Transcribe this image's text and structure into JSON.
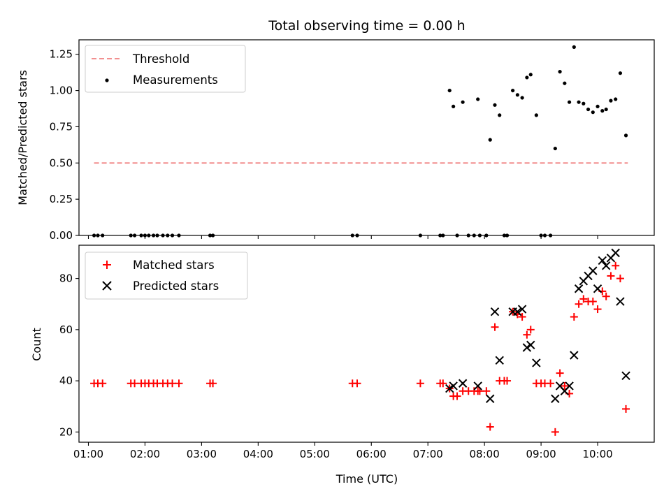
{
  "chart_data": [
    {
      "type": "scatter",
      "title": "Total observing time = 0.00 h",
      "ylabel": "Matched/Predicted stars",
      "xlabel": "",
      "xlim": [
        "00:50",
        "11:00"
      ],
      "ylim": [
        0,
        1.35
      ],
      "yticks": [
        "0.00",
        "0.25",
        "0.50",
        "0.75",
        "1.00",
        "1.25"
      ],
      "legend_position": "top-left",
      "grid": false,
      "threshold": {
        "name": "Threshold",
        "value": 0.5,
        "x_start": "01:06",
        "x_end": "10:32",
        "color": "#f08080"
      },
      "series": [
        {
          "name": "Measurements",
          "color": "#000000",
          "points": [
            [
              "01:06",
              0
            ],
            [
              "01:10",
              0
            ],
            [
              "01:15",
              0
            ],
            [
              "01:45",
              0
            ],
            [
              "01:49",
              0
            ],
            [
              "01:56",
              0
            ],
            [
              "02:00",
              0
            ],
            [
              "02:04",
              0
            ],
            [
              "02:09",
              0
            ],
            [
              "02:13",
              0
            ],
            [
              "02:19",
              0
            ],
            [
              "02:24",
              0
            ],
            [
              "02:29",
              0
            ],
            [
              "02:36",
              0
            ],
            [
              "03:09",
              0
            ],
            [
              "03:12",
              0
            ],
            [
              "05:40",
              0
            ],
            [
              "05:45",
              0
            ],
            [
              "06:52",
              0
            ],
            [
              "07:13",
              0
            ],
            [
              "07:16",
              0
            ],
            [
              "07:23",
              1.0
            ],
            [
              "07:27",
              0.89
            ],
            [
              "07:31",
              0
            ],
            [
              "07:37",
              0.92
            ],
            [
              "07:43",
              0
            ],
            [
              "07:49",
              0
            ],
            [
              "07:53",
              0.94
            ],
            [
              "07:55",
              0
            ],
            [
              "08:02",
              0
            ],
            [
              "08:06",
              0.66
            ],
            [
              "08:11",
              0.9
            ],
            [
              "08:16",
              0.83
            ],
            [
              "08:21",
              0
            ],
            [
              "08:24",
              0
            ],
            [
              "08:30",
              1.0
            ],
            [
              "08:35",
              0.97
            ],
            [
              "08:40",
              0.95
            ],
            [
              "08:45",
              1.09
            ],
            [
              "08:49",
              1.11
            ],
            [
              "08:55",
              0.83
            ],
            [
              "09:00",
              0
            ],
            [
              "09:04",
              0
            ],
            [
              "09:10",
              0
            ],
            [
              "09:15",
              0.6
            ],
            [
              "09:20",
              1.13
            ],
            [
              "09:25",
              1.05
            ],
            [
              "09:30",
              0.92
            ],
            [
              "09:35",
              1.3
            ],
            [
              "09:40",
              0.92
            ],
            [
              "09:45",
              0.91
            ],
            [
              "09:50",
              0.87
            ],
            [
              "09:55",
              0.85
            ],
            [
              "10:00",
              0.89
            ],
            [
              "10:05",
              0.86
            ],
            [
              "10:09",
              0.87
            ],
            [
              "10:14",
              0.93
            ],
            [
              "10:19",
              0.94
            ],
            [
              "10:24",
              1.12
            ],
            [
              "10:30",
              0.69
            ]
          ]
        }
      ]
    },
    {
      "type": "scatter",
      "title": "",
      "ylabel": "Count",
      "xlabel": "Time (UTC)",
      "xlim": [
        "00:50",
        "11:00"
      ],
      "ylim": [
        16,
        93
      ],
      "yticks": [
        "20",
        "40",
        "60",
        "80"
      ],
      "xticks": [
        "01:00",
        "02:00",
        "03:00",
        "04:00",
        "05:00",
        "06:00",
        "07:00",
        "08:00",
        "09:00",
        "10:00"
      ],
      "legend_position": "top-left",
      "grid": false,
      "series": [
        {
          "name": "Matched stars",
          "color": "#ff0000",
          "marker": "plus",
          "points": [
            [
              "01:06",
              39
            ],
            [
              "01:10",
              39
            ],
            [
              "01:15",
              39
            ],
            [
              "01:45",
              39
            ],
            [
              "01:49",
              39
            ],
            [
              "01:56",
              39
            ],
            [
              "02:00",
              39
            ],
            [
              "02:04",
              39
            ],
            [
              "02:09",
              39
            ],
            [
              "02:13",
              39
            ],
            [
              "02:19",
              39
            ],
            [
              "02:24",
              39
            ],
            [
              "02:29",
              39
            ],
            [
              "02:36",
              39
            ],
            [
              "03:09",
              39
            ],
            [
              "03:12",
              39
            ],
            [
              "05:40",
              39
            ],
            [
              "05:45",
              39
            ],
            [
              "06:52",
              39
            ],
            [
              "07:13",
              39
            ],
            [
              "07:16",
              39
            ],
            [
              "07:23",
              37
            ],
            [
              "07:27",
              34
            ],
            [
              "07:31",
              34
            ],
            [
              "07:37",
              36
            ],
            [
              "07:43",
              36
            ],
            [
              "07:49",
              36
            ],
            [
              "07:53",
              36
            ],
            [
              "07:55",
              36
            ],
            [
              "08:02",
              36
            ],
            [
              "08:06",
              22
            ],
            [
              "08:11",
              61
            ],
            [
              "08:16",
              40
            ],
            [
              "08:21",
              40
            ],
            [
              "08:24",
              40
            ],
            [
              "08:30",
              67
            ],
            [
              "08:35",
              66
            ],
            [
              "08:40",
              65
            ],
            [
              "08:45",
              58
            ],
            [
              "08:49",
              60
            ],
            [
              "08:55",
              39
            ],
            [
              "09:00",
              39
            ],
            [
              "09:04",
              39
            ],
            [
              "09:10",
              39
            ],
            [
              "09:15",
              20
            ],
            [
              "09:20",
              43
            ],
            [
              "09:25",
              38
            ],
            [
              "09:30",
              35
            ],
            [
              "09:35",
              65
            ],
            [
              "09:40",
              70
            ],
            [
              "09:45",
              72
            ],
            [
              "09:50",
              71
            ],
            [
              "09:55",
              71
            ],
            [
              "10:00",
              68
            ],
            [
              "10:05",
              75
            ],
            [
              "10:09",
              73
            ],
            [
              "10:14",
              81
            ],
            [
              "10:19",
              85
            ],
            [
              "10:24",
              80
            ],
            [
              "10:30",
              29
            ]
          ]
        },
        {
          "name": "Predicted stars",
          "color": "#000000",
          "marker": "x",
          "points": [
            [
              "07:23",
              37
            ],
            [
              "07:27",
              38
            ],
            [
              "07:37",
              39
            ],
            [
              "07:53",
              38
            ],
            [
              "08:06",
              33
            ],
            [
              "08:11",
              67
            ],
            [
              "08:16",
              48
            ],
            [
              "08:30",
              67
            ],
            [
              "08:35",
              67
            ],
            [
              "08:40",
              68
            ],
            [
              "08:45",
              53
            ],
            [
              "08:49",
              54
            ],
            [
              "08:55",
              47
            ],
            [
              "09:15",
              33
            ],
            [
              "09:20",
              38
            ],
            [
              "09:25",
              36
            ],
            [
              "09:30",
              38
            ],
            [
              "09:35",
              50
            ],
            [
              "09:40",
              76
            ],
            [
              "09:45",
              79
            ],
            [
              "09:50",
              81
            ],
            [
              "09:55",
              83
            ],
            [
              "10:00",
              76
            ],
            [
              "10:05",
              87
            ],
            [
              "10:09",
              85
            ],
            [
              "10:14",
              88
            ],
            [
              "10:19",
              90
            ],
            [
              "10:24",
              71
            ],
            [
              "10:30",
              42
            ]
          ]
        }
      ]
    }
  ]
}
